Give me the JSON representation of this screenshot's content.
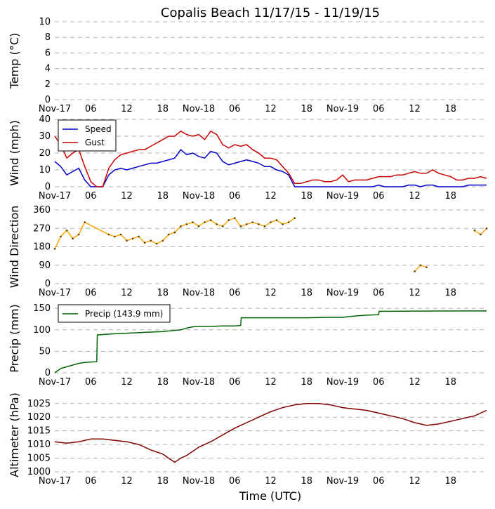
{
  "title": "Copalis Beach 11/17/15 - 11/19/15",
  "xlabel": "Time (UTC)",
  "x_ticks": [
    "Nov-17",
    "06",
    "12",
    "18",
    "Nov-18",
    "06",
    "12",
    "18",
    "Nov-19",
    "06",
    "12",
    "18"
  ],
  "x_tick_hours": [
    0,
    6,
    12,
    18,
    24,
    30,
    36,
    42,
    48,
    54,
    60,
    66
  ],
  "x_range_hours": [
    0,
    72
  ],
  "colors": {
    "speed": "#0000cc",
    "gust": "#cc0000",
    "direction": "#ffa500",
    "direction_dark": "#5a3a00",
    "precip": "#006400",
    "altimeter": "#800000"
  },
  "chart_data": [
    {
      "name": "temperature",
      "type": "line",
      "ylabel": "Temp (°C)",
      "ylim": [
        0,
        10
      ],
      "y_ticks": [
        "0",
        "2",
        "4",
        "6",
        "8",
        "10"
      ],
      "series": []
    },
    {
      "name": "wind",
      "type": "line",
      "ylabel": "Wind (mph)",
      "ylim": [
        0,
        40
      ],
      "y_ticks": [
        "0",
        "10",
        "20",
        "30",
        "40"
      ],
      "legend": [
        "Speed",
        "Gust"
      ],
      "series": [
        {
          "name": "Speed",
          "x": [
            0,
            1,
            2,
            3,
            4,
            5,
            6,
            7,
            8,
            9,
            10,
            11,
            12,
            13,
            14,
            15,
            16,
            17,
            18,
            19,
            20,
            21,
            22,
            23,
            24,
            25,
            26,
            27,
            28,
            29,
            30,
            31,
            32,
            33,
            34,
            35,
            36,
            37,
            38,
            39,
            40,
            41,
            42,
            43,
            44,
            45,
            46,
            47,
            48,
            49,
            50,
            51,
            52,
            53,
            54,
            55,
            56,
            57,
            58,
            59,
            60,
            61,
            62,
            63,
            64,
            65,
            66,
            67,
            68,
            69,
            70,
            71,
            72
          ],
          "values": [
            15,
            12,
            7,
            9,
            11,
            4,
            0,
            0,
            0,
            7,
            10,
            11,
            10,
            11,
            12,
            13,
            14,
            14,
            15,
            16,
            17,
            22,
            19,
            20,
            18,
            17,
            21,
            20,
            15,
            13,
            14,
            15,
            16,
            15,
            14,
            12,
            12,
            10,
            9,
            7,
            0,
            0,
            0,
            0,
            0,
            0,
            0,
            0,
            0,
            0,
            0,
            0,
            0,
            0,
            1,
            0,
            0,
            0,
            0,
            1,
            1,
            0,
            1,
            1,
            0,
            0,
            0,
            0,
            0,
            1,
            1,
            1,
            1
          ]
        },
        {
          "name": "Gust",
          "x": [
            0,
            1,
            2,
            3,
            4,
            5,
            6,
            7,
            8,
            9,
            10,
            11,
            12,
            13,
            14,
            15,
            16,
            17,
            18,
            19,
            20,
            21,
            22,
            23,
            24,
            25,
            26,
            27,
            28,
            29,
            30,
            31,
            32,
            33,
            34,
            35,
            36,
            37,
            38,
            39,
            40,
            41,
            42,
            43,
            44,
            45,
            46,
            47,
            48,
            49,
            50,
            51,
            52,
            53,
            54,
            55,
            56,
            57,
            58,
            59,
            60,
            61,
            62,
            63,
            64,
            65,
            66,
            67,
            68,
            69,
            70,
            71,
            72
          ],
          "values": [
            30,
            25,
            17,
            20,
            22,
            12,
            3,
            0,
            0,
            11,
            16,
            19,
            20,
            21,
            22,
            22,
            24,
            26,
            28,
            30,
            30,
            33,
            31,
            30,
            31,
            28,
            33,
            31,
            25,
            23,
            25,
            24,
            25,
            22,
            20,
            17,
            17,
            16,
            12,
            8,
            2,
            2,
            3,
            4,
            4,
            3,
            3,
            4,
            7,
            3,
            4,
            4,
            4,
            5,
            6,
            6,
            6,
            7,
            7,
            8,
            9,
            8,
            8,
            10,
            8,
            7,
            6,
            4,
            4,
            5,
            5,
            6,
            5
          ]
        }
      ]
    },
    {
      "name": "wind_direction",
      "type": "line",
      "ylabel": "Wind Direction",
      "ylim": [
        0,
        360
      ],
      "y_ticks": [
        "0",
        "90",
        "180",
        "270",
        "360"
      ],
      "series": [
        {
          "name": "Direction",
          "x": [
            0,
            1,
            2,
            3,
            4,
            5,
            9,
            10,
            11,
            12,
            13,
            14,
            15,
            16,
            17,
            18,
            19,
            20,
            21,
            22,
            23,
            24,
            25,
            26,
            27,
            28,
            29,
            30,
            31,
            32,
            33,
            34,
            35,
            36,
            37,
            38,
            39,
            40,
            41,
            42,
            43,
            44,
            45,
            46,
            47,
            48,
            49,
            50,
            51,
            52,
            53,
            54,
            55,
            56,
            57,
            58,
            59,
            60,
            61,
            62,
            63,
            64,
            65,
            66,
            67,
            68,
            69,
            70,
            71,
            72
          ],
          "values": [
            170,
            230,
            260,
            220,
            240,
            300,
            240,
            230,
            240,
            210,
            220,
            230,
            200,
            210,
            195,
            210,
            240,
            250,
            280,
            290,
            300,
            280,
            300,
            310,
            290,
            280,
            310,
            320,
            280,
            290,
            300,
            290,
            280,
            300,
            310,
            290,
            300,
            320,
            null,
            null,
            null,
            null,
            null,
            null,
            null,
            null,
            null,
            null,
            null,
            null,
            null,
            null,
            null,
            null,
            null,
            null,
            null,
            60,
            90,
            80,
            null,
            null,
            null,
            null,
            null,
            null,
            null,
            260,
            240,
            270
          ]
        }
      ]
    },
    {
      "name": "precipitation",
      "type": "line",
      "ylabel": "Precip (mm)",
      "ylim": [
        0,
        160
      ],
      "y_ticks": [
        "0",
        "50",
        "100",
        "150"
      ],
      "legend": [
        "Precip (143.9 mm)"
      ],
      "series": [
        {
          "name": "Precip (143.9 mm)",
          "x": [
            0,
            1,
            2,
            3,
            4,
            5,
            6,
            7,
            7.1,
            9,
            12,
            15,
            18,
            21,
            22,
            23,
            24,
            26,
            28,
            30,
            31,
            31.1,
            34,
            38,
            42,
            46,
            48,
            50,
            52,
            54,
            54.1,
            56,
            60,
            64,
            68,
            72
          ],
          "values": [
            0,
            10,
            14,
            18,
            22,
            24,
            25,
            26,
            88,
            90,
            92,
            94,
            96,
            100,
            104,
            107,
            108,
            108,
            109,
            109,
            110,
            128,
            128,
            128,
            128,
            129,
            129,
            132,
            134,
            135,
            143,
            143,
            143.5,
            143.7,
            143.9,
            143.9
          ]
        }
      ]
    },
    {
      "name": "altimeter",
      "type": "line",
      "ylabel": "Altimeter (hPa)",
      "ylim": [
        1000,
        1027
      ],
      "y_ticks": [
        "1000",
        "1005",
        "1010",
        "1015",
        "1020",
        "1025"
      ],
      "series": [
        {
          "name": "Altimeter",
          "x": [
            0,
            2,
            4,
            6,
            8,
            10,
            12,
            14,
            16,
            18,
            19,
            20,
            21,
            22,
            24,
            26,
            28,
            30,
            32,
            34,
            36,
            38,
            40,
            42,
            44,
            46,
            48,
            50,
            52,
            54,
            56,
            58,
            60,
            61,
            62,
            64,
            66,
            68,
            70,
            72
          ],
          "values": [
            1011,
            1010.5,
            1011,
            1012,
            1012,
            1011.5,
            1011,
            1010,
            1008,
            1006.5,
            1005,
            1003.5,
            1005,
            1006,
            1009,
            1011,
            1013.5,
            1016,
            1018,
            1020,
            1022,
            1023.5,
            1024.5,
            1025,
            1025,
            1024.5,
            1023.5,
            1023,
            1022.5,
            1021.5,
            1020.5,
            1019.5,
            1018,
            1017.5,
            1017,
            1017.5,
            1018.5,
            1019.5,
            1020.5,
            1022.5
          ]
        }
      ]
    }
  ]
}
